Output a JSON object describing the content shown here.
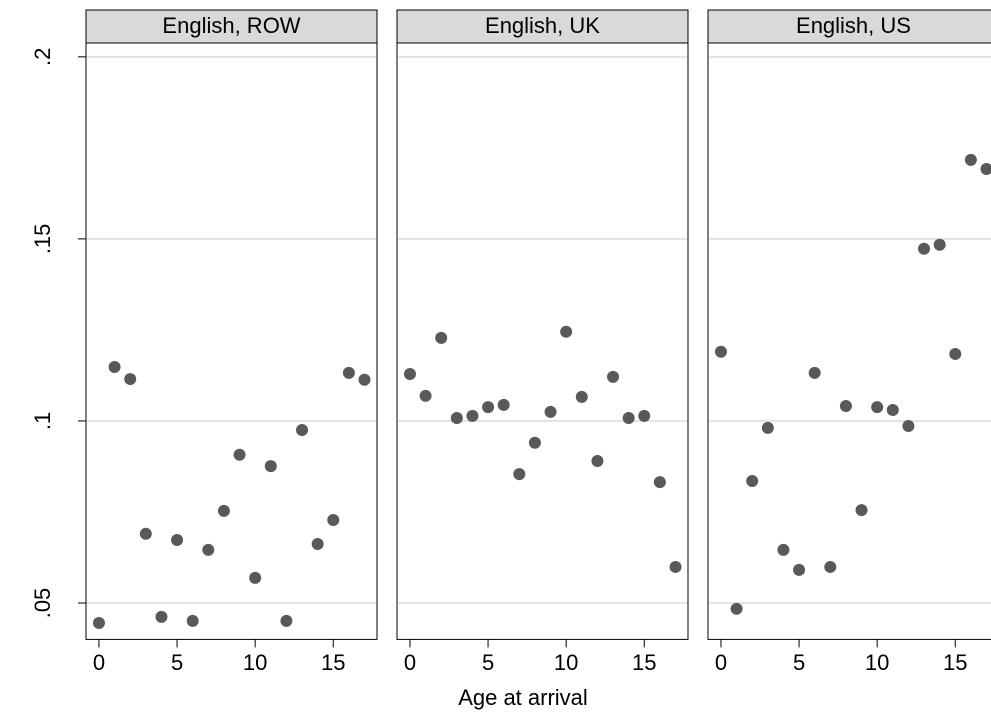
{
  "chart_data": {
    "type": "scatter",
    "x_label": "Age at arrival",
    "x": [
      0,
      1,
      2,
      3,
      4,
      5,
      6,
      7,
      8,
      9,
      10,
      11,
      12,
      13,
      14,
      15,
      16,
      17
    ],
    "xlim": [
      -0.83,
      17.8
    ],
    "xticks": [
      0,
      5,
      10,
      15
    ],
    "ylim": [
      0.04,
      0.2038
    ],
    "yticks": [
      {
        "value": 0.05,
        "label": ".05"
      },
      {
        "value": 0.1,
        "label": ".1"
      },
      {
        "value": 0.15,
        "label": ".15"
      },
      {
        "value": 0.2,
        "label": ".2"
      }
    ],
    "grid": true,
    "color": "#595959",
    "series": [
      {
        "name": "English, ROW",
        "values": [
          0.0445,
          0.1148,
          0.1115,
          0.069,
          0.0462,
          0.0673,
          0.0451,
          0.0646,
          0.0753,
          0.0907,
          0.0569,
          0.0876,
          0.0451,
          0.0975,
          0.0662,
          0.0728,
          0.1132,
          0.1113
        ]
      },
      {
        "name": "English, UK",
        "values": [
          0.1129,
          0.1069,
          0.1228,
          0.1008,
          0.1014,
          0.1038,
          0.1044,
          0.0854,
          0.094,
          0.1025,
          0.1245,
          0.1066,
          0.089,
          0.1121,
          0.1008,
          0.1014,
          0.0832,
          0.0599
        ]
      },
      {
        "name": "English, US",
        "values": [
          0.119,
          0.0484,
          0.0835,
          0.0981,
          0.0646,
          0.0591,
          0.1132,
          0.0599,
          0.1041,
          0.0755,
          0.1038,
          0.103,
          0.0986,
          0.1473,
          0.1484,
          0.1184,
          0.1717,
          0.1692
        ]
      }
    ]
  }
}
